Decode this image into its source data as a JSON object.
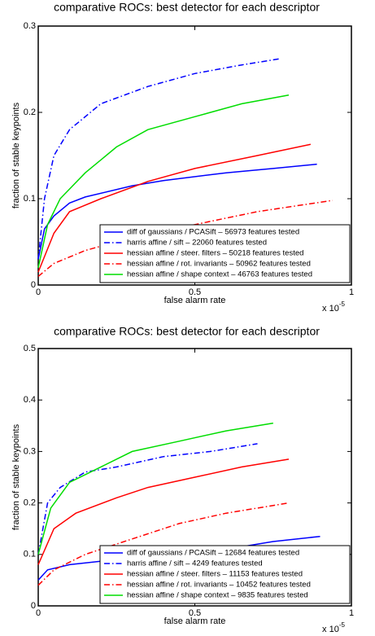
{
  "chart_data": [
    {
      "type": "line",
      "title": "comparative ROCs: best detector for each descriptor",
      "x_label": "false alarm rate",
      "y_label": "fraction of stable keypoints",
      "x_offset_base": "x 10",
      "x_offset_exponent": "-5",
      "xlim": [
        0,
        1
      ],
      "xticks": [
        0,
        0.5,
        1
      ],
      "ylim": [
        0,
        0.3
      ],
      "yticks": [
        0,
        0.1,
        0.2,
        0.3
      ],
      "legend": "lower right",
      "series": [
        {
          "name": "diff of gaussians / PCASift – 56973 features tested",
          "color": "#0000ff",
          "style": "solid",
          "x": [
            0,
            0.02,
            0.05,
            0.1,
            0.15,
            0.3,
            0.4,
            0.6,
            0.75,
            0.89
          ],
          "values": [
            0.03,
            0.065,
            0.08,
            0.095,
            0.102,
            0.115,
            0.121,
            0.13,
            0.135,
            0.14
          ]
        },
        {
          "name": "harris affine / sift – 22060 features tested",
          "color": "#0000ff",
          "style": "dashdot",
          "x": [
            0,
            0.02,
            0.05,
            0.1,
            0.2,
            0.35,
            0.5,
            0.65,
            0.77
          ],
          "values": [
            0.03,
            0.1,
            0.15,
            0.18,
            0.21,
            0.23,
            0.245,
            0.255,
            0.262
          ]
        },
        {
          "name": "hessian affine / steer. filters – 50218 features tested",
          "color": "#ff0000",
          "style": "solid",
          "x": [
            0,
            0.05,
            0.1,
            0.2,
            0.35,
            0.5,
            0.7,
            0.87
          ],
          "values": [
            0.015,
            0.06,
            0.085,
            0.1,
            0.12,
            0.135,
            0.15,
            0.163
          ]
        },
        {
          "name": "hessian affine / rot. invariants – 50962 features tested",
          "color": "#ff0000",
          "style": "dashdot",
          "x": [
            0,
            0.05,
            0.15,
            0.3,
            0.5,
            0.7,
            0.94
          ],
          "values": [
            0.01,
            0.025,
            0.04,
            0.055,
            0.07,
            0.085,
            0.098
          ]
        },
        {
          "name": "hessian affine / shape context – 46763 features tested",
          "color": "#00dd00",
          "style": "solid",
          "x": [
            0,
            0.03,
            0.07,
            0.15,
            0.25,
            0.35,
            0.5,
            0.65,
            0.8
          ],
          "values": [
            0.02,
            0.07,
            0.1,
            0.13,
            0.16,
            0.18,
            0.195,
            0.21,
            0.22
          ]
        }
      ]
    },
    {
      "type": "line",
      "title": "comparative ROCs: best detector for each descriptor",
      "x_label": "false alarm rate",
      "y_label": "fraction of stable keypoints",
      "x_offset_base": "x 10",
      "x_offset_exponent": "-5",
      "xlim": [
        0,
        1
      ],
      "xticks": [
        0,
        0.5,
        1
      ],
      "ylim": [
        0,
        0.5
      ],
      "yticks": [
        0,
        0.1,
        0.2,
        0.3,
        0.4,
        0.5
      ],
      "legend": "lower right",
      "series": [
        {
          "name": "diff of gaussians / PCASift – 12684 features tested",
          "color": "#0000ff",
          "style": "solid",
          "x": [
            0,
            0.03,
            0.1,
            0.25,
            0.45,
            0.6,
            0.75,
            0.9
          ],
          "values": [
            0.05,
            0.07,
            0.08,
            0.09,
            0.1,
            0.11,
            0.125,
            0.135
          ]
        },
        {
          "name": "harris affine / sift – 4249 features tested",
          "color": "#0000ff",
          "style": "dashdot",
          "x": [
            0,
            0.03,
            0.07,
            0.15,
            0.25,
            0.4,
            0.55,
            0.7
          ],
          "values": [
            0.1,
            0.2,
            0.23,
            0.26,
            0.27,
            0.29,
            0.3,
            0.315
          ]
        },
        {
          "name": "hessian affine / steer. filters – 11153 features tested",
          "color": "#ff0000",
          "style": "solid",
          "x": [
            0,
            0.05,
            0.12,
            0.25,
            0.35,
            0.5,
            0.65,
            0.8
          ],
          "values": [
            0.08,
            0.15,
            0.18,
            0.21,
            0.23,
            0.25,
            0.27,
            0.285
          ]
        },
        {
          "name": "hessian affine / rot. invariants – 10452 features tested",
          "color": "#ff0000",
          "style": "dashdot",
          "x": [
            0,
            0.05,
            0.15,
            0.3,
            0.45,
            0.6,
            0.8
          ],
          "values": [
            0.04,
            0.07,
            0.1,
            0.13,
            0.16,
            0.18,
            0.2
          ]
        },
        {
          "name": "hessian affine / shape context – 9835 features tested",
          "color": "#00dd00",
          "style": "solid",
          "x": [
            0,
            0.04,
            0.1,
            0.2,
            0.3,
            0.45,
            0.6,
            0.75
          ],
          "values": [
            0.1,
            0.19,
            0.24,
            0.27,
            0.3,
            0.32,
            0.34,
            0.355
          ]
        }
      ]
    }
  ]
}
